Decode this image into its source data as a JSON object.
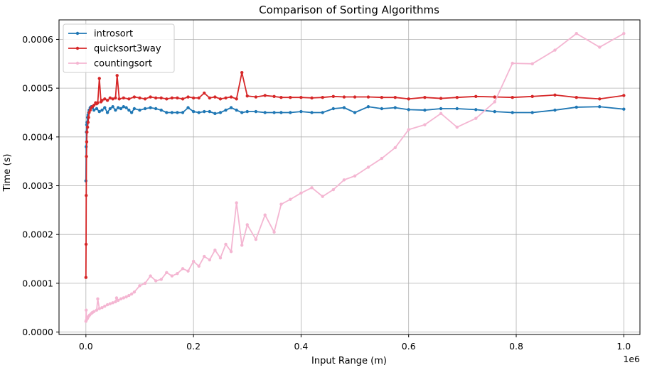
{
  "chart_data": {
    "type": "line",
    "title": "Comparison of Sorting Algorithms",
    "xlabel": "Input Range (m)",
    "ylabel": "Time (s)",
    "x_offset_label": "1e6",
    "xlim": [
      -0.05,
      1.03
    ],
    "ylim": [
      -5e-06,
      0.00064
    ],
    "x_ticks": [
      0.0,
      0.2,
      0.4,
      0.6,
      0.8,
      1.0
    ],
    "x_tick_labels": [
      "0.0",
      "0.2",
      "0.4",
      "0.6",
      "0.8",
      "1.0"
    ],
    "y_ticks": [
      0.0,
      0.0001,
      0.0002,
      0.0003,
      0.0004,
      0.0005,
      0.0006
    ],
    "y_tick_labels": [
      "0.0000",
      "0.0001",
      "0.0002",
      "0.0003",
      "0.0004",
      "0.0005",
      "0.0006"
    ],
    "grid": true,
    "legend_position": "top-left",
    "series": [
      {
        "name": "introsort",
        "color": "#1f77b4",
        "x": [
          0.0,
          0.0005,
          0.001,
          0.0015,
          0.002,
          0.003,
          0.004,
          0.005,
          0.006,
          0.008,
          0.01,
          0.012,
          0.015,
          0.02,
          0.025,
          0.03,
          0.035,
          0.04,
          0.045,
          0.05,
          0.055,
          0.06,
          0.065,
          0.07,
          0.075,
          0.08,
          0.085,
          0.09,
          0.1,
          0.11,
          0.12,
          0.13,
          0.14,
          0.15,
          0.16,
          0.17,
          0.18,
          0.19,
          0.2,
          0.21,
          0.22,
          0.23,
          0.24,
          0.25,
          0.26,
          0.27,
          0.28,
          0.29,
          0.3,
          0.316,
          0.333,
          0.35,
          0.363,
          0.38,
          0.4,
          0.42,
          0.44,
          0.46,
          0.48,
          0.5,
          0.525,
          0.55,
          0.575,
          0.6,
          0.63,
          0.66,
          0.69,
          0.725,
          0.76,
          0.793,
          0.83,
          0.872,
          0.912,
          0.955,
          1.0
        ],
        "values": [
          0.00031,
          0.00038,
          0.00041,
          0.000425,
          0.00043,
          0.00044,
          0.000445,
          0.00045,
          0.000455,
          0.00046,
          0.000462,
          0.00046,
          0.000455,
          0.000458,
          0.000452,
          0.000455,
          0.00046,
          0.00045,
          0.000458,
          0.000462,
          0.000455,
          0.00046,
          0.000458,
          0.000462,
          0.00046,
          0.000455,
          0.00045,
          0.000458,
          0.000455,
          0.000458,
          0.00046,
          0.000458,
          0.000455,
          0.00045,
          0.00045,
          0.00045,
          0.00045,
          0.00046,
          0.000452,
          0.00045,
          0.000452,
          0.000452,
          0.000448,
          0.00045,
          0.000455,
          0.00046,
          0.000455,
          0.00045,
          0.000452,
          0.000452,
          0.00045,
          0.00045,
          0.00045,
          0.00045,
          0.000452,
          0.00045,
          0.00045,
          0.000458,
          0.00046,
          0.00045,
          0.000462,
          0.000458,
          0.00046,
          0.000456,
          0.000455,
          0.000458,
          0.000458,
          0.000456,
          0.000452,
          0.00045,
          0.00045,
          0.000455,
          0.000461,
          0.000462,
          0.000457
        ]
      },
      {
        "name": "quicksort3way",
        "color": "#d62728",
        "x": [
          0.0,
          0.0003,
          0.0006,
          0.001,
          0.0015,
          0.002,
          0.003,
          0.004,
          0.005,
          0.006,
          0.008,
          0.01,
          0.012,
          0.015,
          0.018,
          0.02,
          0.022,
          0.025,
          0.028,
          0.03,
          0.035,
          0.04,
          0.045,
          0.05,
          0.055,
          0.058,
          0.062,
          0.07,
          0.08,
          0.09,
          0.1,
          0.11,
          0.12,
          0.13,
          0.14,
          0.15,
          0.16,
          0.17,
          0.18,
          0.19,
          0.2,
          0.21,
          0.22,
          0.23,
          0.24,
          0.25,
          0.26,
          0.27,
          0.28,
          0.29,
          0.3,
          0.316,
          0.333,
          0.35,
          0.363,
          0.38,
          0.4,
          0.42,
          0.44,
          0.46,
          0.48,
          0.5,
          0.525,
          0.55,
          0.575,
          0.6,
          0.63,
          0.66,
          0.69,
          0.725,
          0.76,
          0.793,
          0.83,
          0.872,
          0.912,
          0.955,
          1.0
        ],
        "values": [
          0.000112,
          0.00018,
          0.00028,
          0.00036,
          0.00039,
          0.00041,
          0.00042,
          0.00043,
          0.00044,
          0.00045,
          0.000455,
          0.00046,
          0.000462,
          0.000465,
          0.00047,
          0.000468,
          0.00047,
          0.00052,
          0.000472,
          0.000475,
          0.000478,
          0.000475,
          0.00048,
          0.000478,
          0.00048,
          0.000526,
          0.000478,
          0.00048,
          0.000478,
          0.000482,
          0.00048,
          0.000478,
          0.000482,
          0.00048,
          0.00048,
          0.000478,
          0.00048,
          0.00048,
          0.000478,
          0.000482,
          0.00048,
          0.00048,
          0.00049,
          0.00048,
          0.000482,
          0.000478,
          0.00048,
          0.000482,
          0.000478,
          0.000532,
          0.000484,
          0.000482,
          0.000485,
          0.000483,
          0.000481,
          0.000481,
          0.000481,
          0.00048,
          0.000481,
          0.000483,
          0.000482,
          0.000482,
          0.000482,
          0.000481,
          0.000481,
          0.000478,
          0.000481,
          0.000479,
          0.000481,
          0.000483,
          0.000482,
          0.000481,
          0.000483,
          0.000486,
          0.000481,
          0.000478,
          0.000485
        ]
      },
      {
        "name": "countingsort",
        "color": "#f4b6d2",
        "x": [
          0.0,
          0.0005,
          0.001,
          0.002,
          0.003,
          0.005,
          0.007,
          0.01,
          0.012,
          0.015,
          0.02,
          0.022,
          0.025,
          0.03,
          0.035,
          0.04,
          0.045,
          0.05,
          0.055,
          0.057,
          0.06,
          0.065,
          0.07,
          0.075,
          0.08,
          0.085,
          0.09,
          0.1,
          0.11,
          0.12,
          0.13,
          0.14,
          0.15,
          0.16,
          0.17,
          0.18,
          0.19,
          0.2,
          0.21,
          0.22,
          0.23,
          0.24,
          0.25,
          0.26,
          0.27,
          0.28,
          0.29,
          0.3,
          0.316,
          0.333,
          0.35,
          0.363,
          0.38,
          0.4,
          0.42,
          0.44,
          0.46,
          0.48,
          0.5,
          0.525,
          0.55,
          0.575,
          0.6,
          0.63,
          0.66,
          0.69,
          0.725,
          0.76,
          0.793,
          0.83,
          0.872,
          0.912,
          0.955,
          1.0
        ],
        "values": [
          2.2e-05,
          4.5e-05,
          2.5e-05,
          3e-05,
          2.8e-05,
          3.2e-05,
          3.5e-05,
          3.8e-05,
          4e-05,
          4.2e-05,
          4.5e-05,
          6.8e-05,
          4.8e-05,
          5e-05,
          5.3e-05,
          5.6e-05,
          5.8e-05,
          6e-05,
          6.2e-05,
          7e-05,
          6.5e-05,
          6.8e-05,
          7e-05,
          7.2e-05,
          7.5e-05,
          7.8e-05,
          8.2e-05,
          9.5e-05,
          0.0001,
          0.000115,
          0.000105,
          0.000108,
          0.000122,
          0.000115,
          0.00012,
          0.00013,
          0.000125,
          0.000145,
          0.000135,
          0.000155,
          0.000148,
          0.000168,
          0.000152,
          0.00018,
          0.000165,
          0.000265,
          0.000178,
          0.00022,
          0.00019,
          0.00024,
          0.000205,
          0.000262,
          0.000272,
          0.000285,
          0.000296,
          0.000278,
          0.000292,
          0.000312,
          0.00032,
          0.000338,
          0.000356,
          0.000378,
          0.000415,
          0.000425,
          0.000448,
          0.00042,
          0.000438,
          0.000472,
          0.000551,
          0.00055,
          0.000578,
          0.000612,
          0.000584,
          0.000612
        ]
      }
    ]
  }
}
